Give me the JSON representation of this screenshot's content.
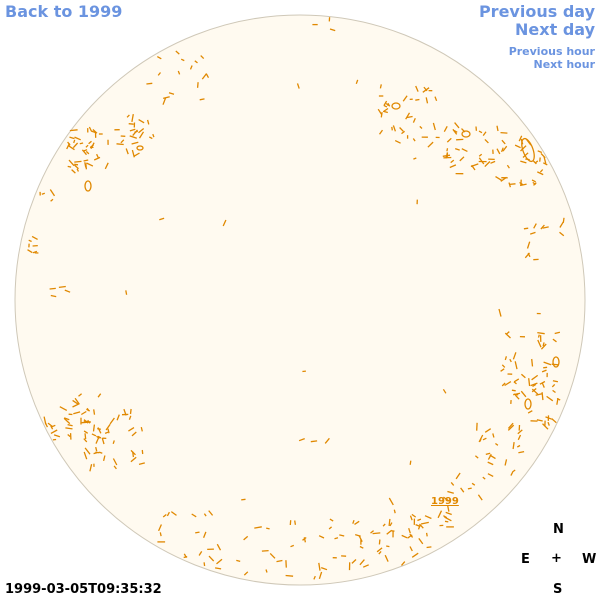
{
  "nav": {
    "back_label": "Back to 1999",
    "prev_day_label": "Previous day",
    "next_day_label": "Next day",
    "prev_hour_label": "Previous hour",
    "next_hour_label": "Next hour"
  },
  "disk": {
    "fill_color": "#fffaf0",
    "edge_color": "#cfc8b8",
    "region_color": "#e08800",
    "region_label": "1999"
  },
  "compass": {
    "north": "N",
    "east": "E",
    "center": "+",
    "west": "W",
    "south": "S"
  },
  "timestamp": "1999-03-05T09:35:32"
}
